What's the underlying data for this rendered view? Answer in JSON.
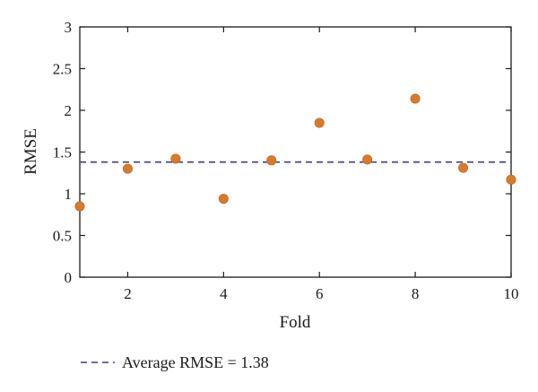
{
  "chart_data": {
    "type": "scatter",
    "xlabel": "Fold",
    "ylabel": "RMSE",
    "xlim": [
      1,
      10
    ],
    "ylim": [
      0,
      3
    ],
    "x_ticks": [
      "2",
      "4",
      "6",
      "8",
      "10"
    ],
    "y_ticks": [
      "0",
      "0.5",
      "1",
      "1.5",
      "2",
      "2.5",
      "3"
    ],
    "series": [
      {
        "x": [
          1,
          2,
          3,
          4,
          5,
          6,
          7,
          8,
          9,
          10
        ],
        "values": [
          0.85,
          1.3,
          1.42,
          0.94,
          1.4,
          1.85,
          1.41,
          2.14,
          1.31,
          1.17
        ],
        "color": "#d97a2b"
      }
    ],
    "reference_lines": [
      {
        "name": "Average RMSE = 1.38",
        "y": 1.38,
        "style": "dashed",
        "color": "#3b3b8f"
      }
    ],
    "legend": {
      "entries": [
        "Average RMSE = 1.38"
      ],
      "placement": "bottom-left"
    },
    "grid": false
  }
}
